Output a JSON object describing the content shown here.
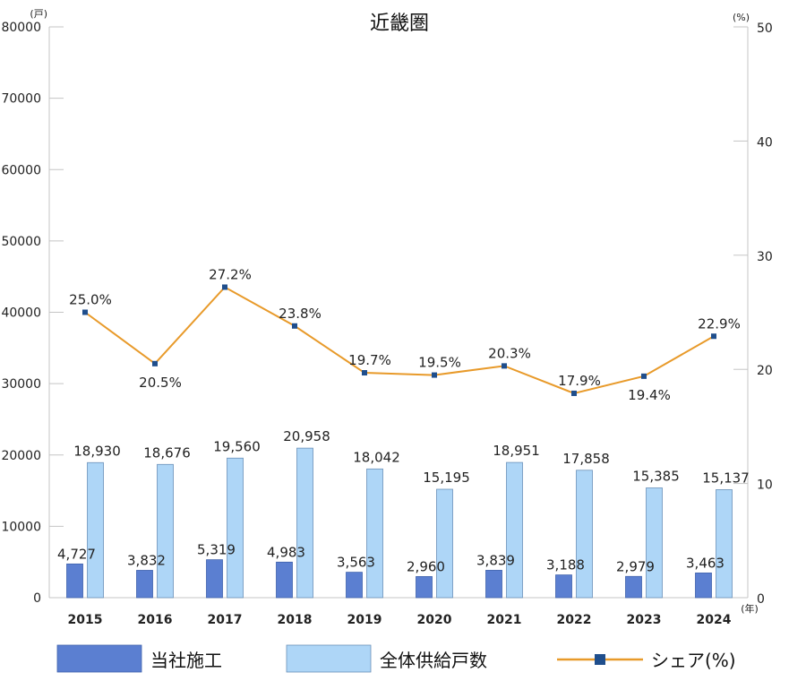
{
  "chart_data": {
    "type": "bar",
    "title": "近畿圏",
    "left_axis": {
      "unit": "(戸)",
      "ylim": [
        0,
        80000
      ],
      "ticks": [
        "0",
        "10000",
        "20000",
        "30000",
        "40000",
        "50000",
        "60000",
        "70000",
        "80000"
      ]
    },
    "right_axis": {
      "unit": "(%)",
      "ylim": [
        0,
        50
      ],
      "ticks": [
        "0",
        "10",
        "20",
        "30",
        "40",
        "50"
      ]
    },
    "x_unit": "(年)",
    "categories": [
      "2015",
      "2016",
      "2017",
      "2018",
      "2019",
      "2020",
      "2021",
      "2022",
      "2023",
      "2024"
    ],
    "series": [
      {
        "name": "当社施工",
        "kind": "bar",
        "axis": "left",
        "color": "#5b7fd1",
        "values": [
          4727,
          3832,
          5319,
          4983,
          3563,
          2960,
          3839,
          3188,
          2979,
          3463
        ],
        "labels": [
          "4,727",
          "3,832",
          "5,319",
          "4,983",
          "3,563",
          "2,960",
          "3,839",
          "3,188",
          "2,979",
          "3,463"
        ]
      },
      {
        "name": "全体供給戸数",
        "kind": "bar",
        "axis": "left",
        "color": "#aed6f7",
        "values": [
          18930,
          18676,
          19560,
          20958,
          18042,
          15195,
          18951,
          17858,
          15385,
          15137
        ],
        "labels": [
          "18,930",
          "18,676",
          "19,560",
          "20,958",
          "18,042",
          "15,195",
          "18,951",
          "17,858",
          "15,385",
          "15,137"
        ]
      },
      {
        "name": "シェア(%)",
        "kind": "line",
        "axis": "right",
        "color": "#e89a2a",
        "marker_color": "#1f4e8c",
        "values": [
          25.0,
          20.5,
          27.2,
          23.8,
          19.7,
          19.5,
          20.3,
          17.9,
          19.4,
          22.9
        ],
        "labels": [
          "25.0%",
          "20.5%",
          "27.2%",
          "23.8%",
          "19.7%",
          "19.5%",
          "20.3%",
          "17.9%",
          "19.4%",
          "22.9%"
        ],
        "label_position": [
          "above",
          "below",
          "above",
          "above",
          "above",
          "above",
          "above",
          "above",
          "below",
          "above"
        ]
      }
    ],
    "grid": false,
    "legend": "bottom"
  }
}
